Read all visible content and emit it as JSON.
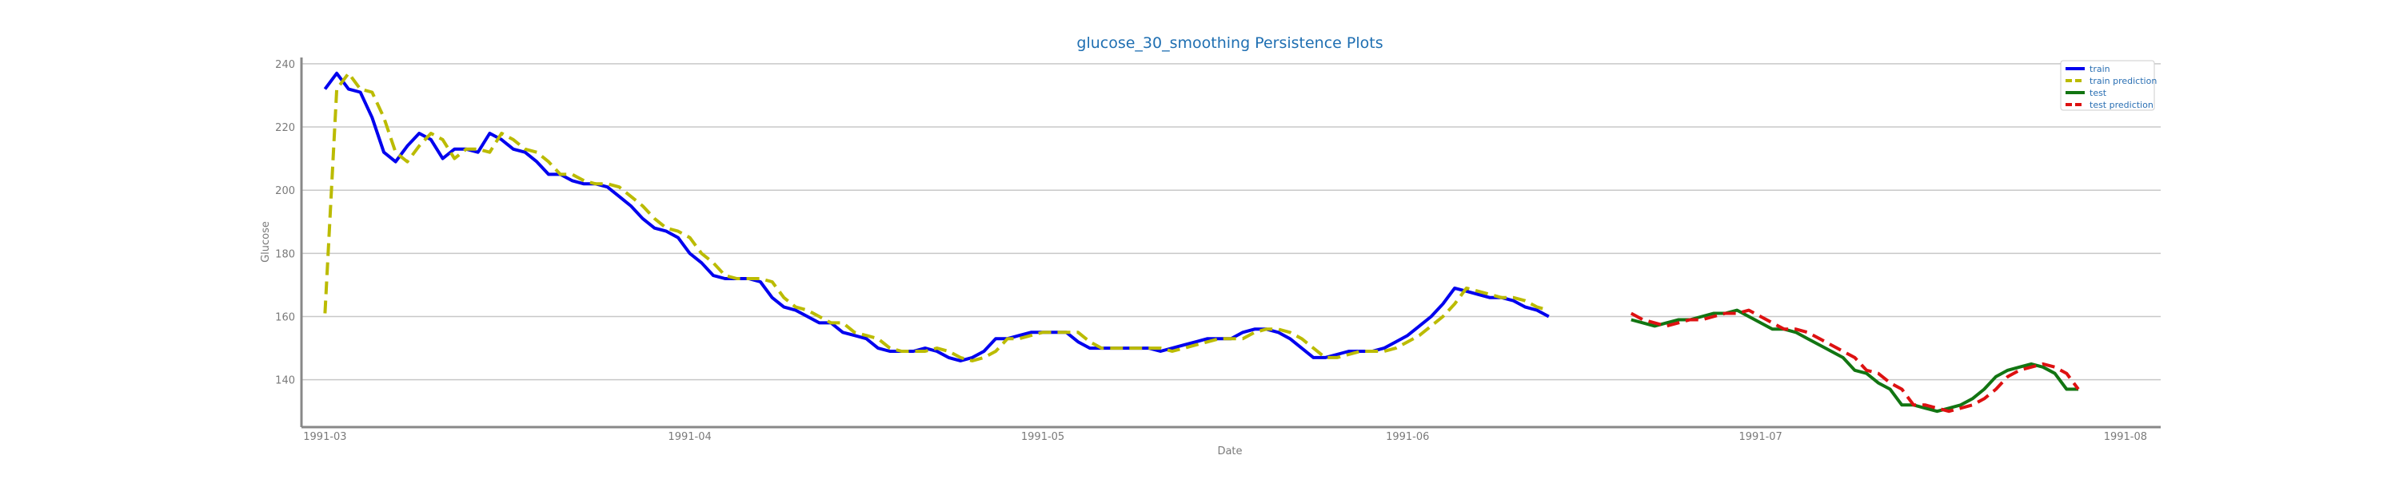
{
  "chart_data": {
    "type": "line",
    "title": "glucose_30_smoothing Persistence Plots",
    "xlabel": "Date",
    "ylabel": "Glucose",
    "ylim": [
      125,
      242
    ],
    "yticks": [
      140,
      160,
      180,
      200,
      220,
      240
    ],
    "xlim": [
      "1991-02-27",
      "1991-08-04"
    ],
    "xticks": [
      {
        "date": "1991-03-01",
        "label": "1991-03"
      },
      {
        "date": "1991-04-01",
        "label": "1991-04"
      },
      {
        "date": "1991-05-01",
        "label": "1991-05"
      },
      {
        "date": "1991-06-01",
        "label": "1991-06"
      },
      {
        "date": "1991-07-01",
        "label": "1991-07"
      },
      {
        "date": "1991-08-01",
        "label": "1991-08"
      }
    ],
    "grid": "horizontal",
    "legend_position": "top-right",
    "series": [
      {
        "name": "train",
        "color": "#0000ee",
        "dash": "solid",
        "x": [
          "1991-03-01",
          "1991-03-02",
          "1991-03-03",
          "1991-03-04",
          "1991-03-05",
          "1991-03-06",
          "1991-03-07",
          "1991-03-08",
          "1991-03-09",
          "1991-03-10",
          "1991-03-11",
          "1991-03-12",
          "1991-03-13",
          "1991-03-14",
          "1991-03-15",
          "1991-03-16",
          "1991-03-17",
          "1991-03-18",
          "1991-03-19",
          "1991-03-20",
          "1991-03-21",
          "1991-03-22",
          "1991-03-23",
          "1991-03-24",
          "1991-03-25",
          "1991-03-26",
          "1991-03-27",
          "1991-03-28",
          "1991-03-29",
          "1991-03-30",
          "1991-03-31",
          "1991-04-01",
          "1991-04-02",
          "1991-04-03",
          "1991-04-04",
          "1991-04-05",
          "1991-04-06",
          "1991-04-07",
          "1991-04-08",
          "1991-04-09",
          "1991-04-10",
          "1991-04-11",
          "1991-04-12",
          "1991-04-13",
          "1991-04-14",
          "1991-04-15",
          "1991-04-16",
          "1991-04-17",
          "1991-04-18",
          "1991-04-19",
          "1991-04-20",
          "1991-04-21",
          "1991-04-22",
          "1991-04-23",
          "1991-04-24",
          "1991-04-25",
          "1991-04-26",
          "1991-04-27",
          "1991-04-28",
          "1991-04-29",
          "1991-04-30",
          "1991-05-01",
          "1991-05-02",
          "1991-05-03",
          "1991-05-04",
          "1991-05-05",
          "1991-05-06",
          "1991-05-07",
          "1991-05-08",
          "1991-05-09",
          "1991-05-10",
          "1991-05-11",
          "1991-05-12",
          "1991-05-13",
          "1991-05-14",
          "1991-05-15",
          "1991-05-16",
          "1991-05-17",
          "1991-05-18",
          "1991-05-19",
          "1991-05-20",
          "1991-05-21",
          "1991-05-22",
          "1991-05-23",
          "1991-05-24",
          "1991-05-25",
          "1991-05-26",
          "1991-05-27",
          "1991-05-28",
          "1991-05-29",
          "1991-05-30",
          "1991-05-31",
          "1991-06-01",
          "1991-06-02",
          "1991-06-03",
          "1991-06-04",
          "1991-06-05",
          "1991-06-06",
          "1991-06-07",
          "1991-06-08",
          "1991-06-09",
          "1991-06-10",
          "1991-06-11",
          "1991-06-12",
          "1991-06-13",
          "1991-06-14",
          "1991-06-15",
          "1991-06-16",
          "1991-06-17",
          "1991-06-18",
          "1991-06-19"
        ],
        "values": [
          232,
          237,
          232,
          231,
          223,
          212,
          209,
          214,
          218,
          216,
          210,
          213,
          213,
          212,
          218,
          216,
          213,
          212,
          209,
          205,
          205,
          203,
          202,
          202,
          201,
          198,
          195,
          191,
          188,
          187,
          185,
          180,
          177,
          173,
          172,
          172,
          172,
          171,
          166,
          163,
          162,
          160,
          158,
          158,
          155,
          154,
          153,
          150,
          149,
          149,
          149,
          150,
          149,
          147,
          146,
          147,
          149,
          153,
          153,
          154,
          155,
          155,
          155,
          155,
          152,
          150,
          150,
          150,
          150,
          150,
          150,
          149,
          150,
          151,
          152,
          153,
          153,
          153,
          155,
          156,
          156,
          155,
          153,
          150,
          147,
          147,
          148,
          149,
          149,
          149,
          150,
          152,
          154,
          157,
          160,
          164,
          169,
          168,
          167,
          166,
          166,
          165,
          163,
          162,
          160,
          null,
          null,
          null,
          null,
          null,
          null
        ]
      },
      {
        "name": "train prediction",
        "color": "#bbbb00",
        "dash": "dashed",
        "x": [
          "1991-03-01",
          "1991-03-02",
          "1991-03-03",
          "1991-03-04",
          "1991-03-05",
          "1991-03-06",
          "1991-03-07",
          "1991-03-08",
          "1991-03-09",
          "1991-03-10",
          "1991-03-11",
          "1991-03-12",
          "1991-03-13",
          "1991-03-14",
          "1991-03-15",
          "1991-03-16",
          "1991-03-17",
          "1991-03-18",
          "1991-03-19",
          "1991-03-20",
          "1991-03-21",
          "1991-03-22",
          "1991-03-23",
          "1991-03-24",
          "1991-03-25",
          "1991-03-26",
          "1991-03-27",
          "1991-03-28",
          "1991-03-29",
          "1991-03-30",
          "1991-03-31",
          "1991-04-01",
          "1991-04-02",
          "1991-04-03",
          "1991-04-04",
          "1991-04-05",
          "1991-04-06",
          "1991-04-07",
          "1991-04-08",
          "1991-04-09",
          "1991-04-10",
          "1991-04-11",
          "1991-04-12",
          "1991-04-13",
          "1991-04-14",
          "1991-04-15",
          "1991-04-16",
          "1991-04-17",
          "1991-04-18",
          "1991-04-19",
          "1991-04-20",
          "1991-04-21",
          "1991-04-22",
          "1991-04-23",
          "1991-04-24",
          "1991-04-25",
          "1991-04-26",
          "1991-04-27",
          "1991-04-28",
          "1991-04-29",
          "1991-04-30",
          "1991-05-01",
          "1991-05-02",
          "1991-05-03",
          "1991-05-04",
          "1991-05-05",
          "1991-05-06",
          "1991-05-07",
          "1991-05-08",
          "1991-05-09",
          "1991-05-10",
          "1991-05-11",
          "1991-05-12",
          "1991-05-13",
          "1991-05-14",
          "1991-05-15",
          "1991-05-16",
          "1991-05-17",
          "1991-05-18",
          "1991-05-19",
          "1991-05-20",
          "1991-05-21",
          "1991-05-22",
          "1991-05-23",
          "1991-05-24",
          "1991-05-25",
          "1991-05-26",
          "1991-05-27",
          "1991-05-28",
          "1991-05-29",
          "1991-05-30",
          "1991-05-31",
          "1991-06-01",
          "1991-06-02",
          "1991-06-03",
          "1991-06-04",
          "1991-06-05",
          "1991-06-06",
          "1991-06-07",
          "1991-06-08",
          "1991-06-09",
          "1991-06-10",
          "1991-06-11",
          "1991-06-12",
          "1991-06-13",
          "1991-06-14",
          "1991-06-15",
          "1991-06-16",
          "1991-06-17",
          "1991-06-18",
          "1991-06-19"
        ],
        "values": [
          161,
          232,
          237,
          232,
          231,
          223,
          212,
          209,
          214,
          218,
          216,
          210,
          213,
          213,
          212,
          218,
          216,
          213,
          212,
          209,
          205,
          205,
          203,
          202,
          202,
          201,
          198,
          195,
          191,
          188,
          187,
          185,
          180,
          177,
          173,
          172,
          172,
          172,
          171,
          166,
          163,
          162,
          160,
          158,
          158,
          155,
          154,
          153,
          150,
          149,
          149,
          149,
          150,
          149,
          147,
          146,
          147,
          149,
          153,
          153,
          154,
          155,
          155,
          155,
          155,
          152,
          150,
          150,
          150,
          150,
          150,
          150,
          149,
          150,
          151,
          152,
          153,
          153,
          153,
          155,
          156,
          156,
          155,
          153,
          150,
          147,
          147,
          148,
          149,
          149,
          149,
          150,
          152,
          154,
          157,
          160,
          164,
          169,
          168,
          167,
          166,
          166,
          165,
          163,
          162,
          null,
          null,
          null,
          null,
          null,
          null
        ]
      },
      {
        "name": "test",
        "color": "#127512",
        "dash": "solid",
        "x": [
          "1991-06-20",
          "1991-06-21",
          "1991-06-22",
          "1991-06-23",
          "1991-06-24",
          "1991-06-25",
          "1991-06-26",
          "1991-06-27",
          "1991-06-28",
          "1991-06-29",
          "1991-06-30",
          "1991-07-01",
          "1991-07-02",
          "1991-07-03",
          "1991-07-04",
          "1991-07-05",
          "1991-07-06",
          "1991-07-07",
          "1991-07-08",
          "1991-07-09",
          "1991-07-10",
          "1991-07-11",
          "1991-07-12",
          "1991-07-13",
          "1991-07-14",
          "1991-07-15",
          "1991-07-16",
          "1991-07-17",
          "1991-07-18",
          "1991-07-19",
          "1991-07-20",
          "1991-07-21",
          "1991-07-22",
          "1991-07-23",
          "1991-07-24",
          "1991-07-25",
          "1991-07-26",
          "1991-07-27",
          "1991-07-28"
        ],
        "values": [
          159,
          158,
          157,
          158,
          159,
          159,
          160,
          161,
          161,
          162,
          160,
          158,
          156,
          156,
          155,
          153,
          151,
          149,
          147,
          143,
          142,
          139,
          137,
          132,
          132,
          131,
          130,
          131,
          132,
          134,
          137,
          141,
          143,
          144,
          145,
          144,
          142,
          137,
          137
        ]
      },
      {
        "name": "test prediction",
        "color": "#dd1111",
        "dash": "dashed",
        "x": [
          "1991-06-20",
          "1991-06-21",
          "1991-06-22",
          "1991-06-23",
          "1991-06-24",
          "1991-06-25",
          "1991-06-26",
          "1991-06-27",
          "1991-06-28",
          "1991-06-29",
          "1991-06-30",
          "1991-07-01",
          "1991-07-02",
          "1991-07-03",
          "1991-07-04",
          "1991-07-05",
          "1991-07-06",
          "1991-07-07",
          "1991-07-08",
          "1991-07-09",
          "1991-07-10",
          "1991-07-11",
          "1991-07-12",
          "1991-07-13",
          "1991-07-14",
          "1991-07-15",
          "1991-07-16",
          "1991-07-17",
          "1991-07-18",
          "1991-07-19",
          "1991-07-20",
          "1991-07-21",
          "1991-07-22",
          "1991-07-23",
          "1991-07-24",
          "1991-07-25",
          "1991-07-26",
          "1991-07-27",
          "1991-07-28"
        ],
        "values": [
          161,
          159,
          158,
          157,
          158,
          159,
          159,
          160,
          161,
          161,
          162,
          160,
          158,
          156,
          156,
          155,
          153,
          151,
          149,
          147,
          143,
          142,
          139,
          137,
          132,
          132,
          131,
          130,
          131,
          132,
          134,
          137,
          141,
          143,
          144,
          145,
          144,
          142,
          137
        ]
      }
    ]
  }
}
